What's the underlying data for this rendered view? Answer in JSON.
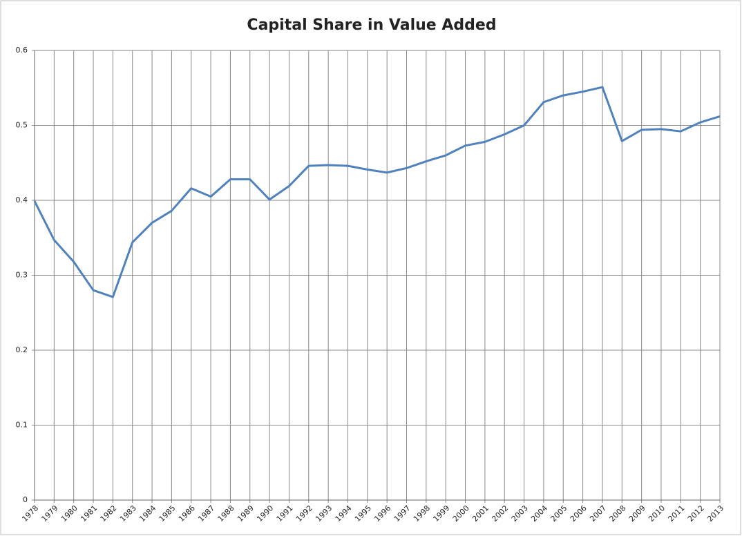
{
  "chart_data": {
    "type": "line",
    "title": "Capital Share in Value Added",
    "x": [
      1978,
      1979,
      1980,
      1981,
      1982,
      1983,
      1984,
      1985,
      1986,
      1987,
      1988,
      1989,
      1990,
      1991,
      1992,
      1993,
      1994,
      1995,
      1996,
      1997,
      1998,
      1999,
      2000,
      2001,
      2002,
      2003,
      2004,
      2005,
      2006,
      2007,
      2008,
      2009,
      2010,
      2011,
      2012,
      2013
    ],
    "values": [
      0.399,
      0.347,
      0.318,
      0.28,
      0.271,
      0.344,
      0.37,
      0.386,
      0.416,
      0.405,
      0.428,
      0.428,
      0.401,
      0.419,
      0.446,
      0.447,
      0.446,
      0.441,
      0.437,
      0.443,
      0.452,
      0.46,
      0.473,
      0.478,
      0.488,
      0.5,
      0.531,
      0.54,
      0.545,
      0.551,
      0.479,
      0.494,
      0.495,
      0.492,
      0.504,
      0.512
    ],
    "color": "#4f81bd",
    "xlim": [
      1978,
      2013
    ],
    "xticks": [
      1978,
      1979,
      1980,
      1981,
      1982,
      1983,
      1984,
      1985,
      1986,
      1987,
      1988,
      1989,
      1990,
      1991,
      1992,
      1993,
      1994,
      1995,
      1996,
      1997,
      1998,
      1999,
      2000,
      2001,
      2002,
      2003,
      2004,
      2005,
      2006,
      2007,
      2008,
      2009,
      2010,
      2011,
      2012,
      2013
    ],
    "ylim": [
      0,
      0.6
    ],
    "yticks": [
      0,
      0.1,
      0.2,
      0.3,
      0.4,
      0.5,
      0.6
    ],
    "grid": true
  }
}
